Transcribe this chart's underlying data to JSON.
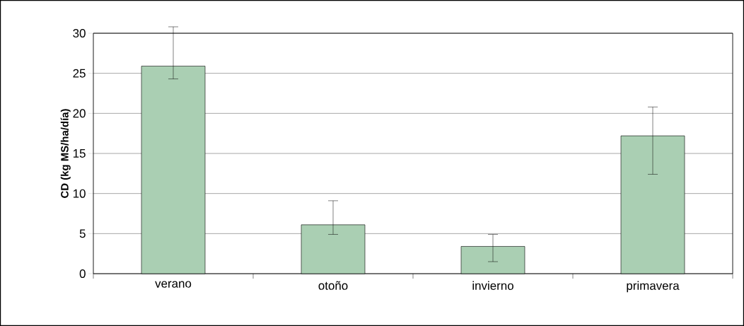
{
  "chart_data": {
    "type": "bar",
    "ylabel": "CD (kg MS/ha/día)",
    "categories": [
      "verano",
      "otoño",
      "invierno",
      "primavera"
    ],
    "values": [
      25.9,
      6.1,
      3.4,
      17.2
    ],
    "errors": [
      [
        24.3,
        30.8
      ],
      [
        4.9,
        9.1
      ],
      [
        1.5,
        4.9
      ],
      [
        12.4,
        20.8
      ]
    ],
    "color": "#aacfb3",
    "ylim": [
      0,
      30
    ],
    "yticks": [
      0,
      5,
      10,
      15,
      20,
      25,
      30
    ],
    "grid": "y"
  }
}
